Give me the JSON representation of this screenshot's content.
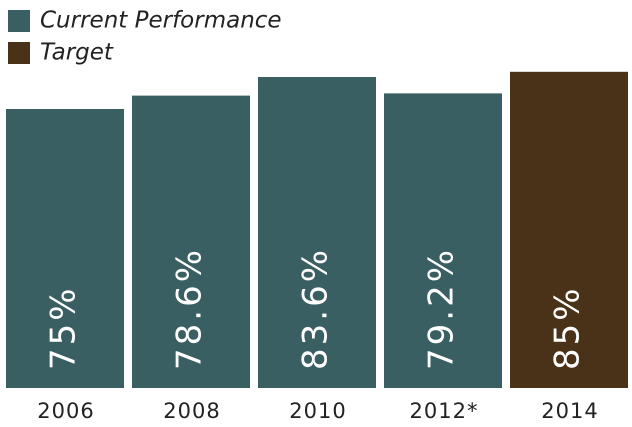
{
  "chart_data": {
    "type": "bar",
    "categories": [
      "2006",
      "2008",
      "2010",
      "2012*",
      "2014"
    ],
    "series": [
      {
        "name": "Current Performance",
        "color": "#3a5f63",
        "values": [
          75,
          78.6,
          83.6,
          79.2,
          null
        ],
        "value_labels": [
          "75%",
          "78.6%",
          "83.6%",
          "79.2%",
          null
        ]
      },
      {
        "name": "Target",
        "color": "#4a3218",
        "values": [
          null,
          null,
          null,
          null,
          85
        ],
        "value_labels": [
          null,
          null,
          null,
          null,
          "85%"
        ]
      }
    ],
    "ylim": [
      0,
      100
    ]
  }
}
